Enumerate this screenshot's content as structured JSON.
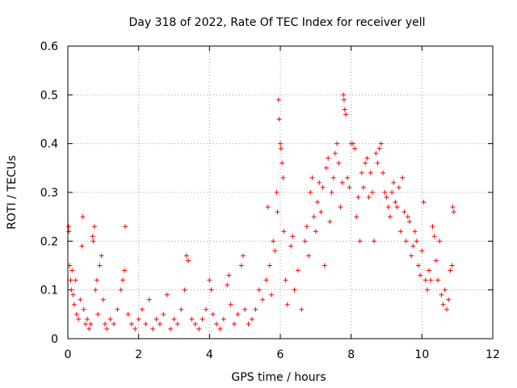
{
  "chart_data": {
    "type": "scatter",
    "title": "Day 318 of 2022, Rate Of TEC Index for receiver yell",
    "xlabel": "GPS time / hours",
    "ylabel": "ROTI / TECUs",
    "xlim": [
      0,
      12
    ],
    "ylim": [
      0,
      0.6
    ],
    "xticks": [
      "0",
      "2",
      "4",
      "6",
      "8",
      "10",
      "12"
    ],
    "yticks": [
      "0",
      "0.1",
      "0.2",
      "0.3",
      "0.4",
      "0.5",
      "0.6"
    ],
    "grid": true,
    "marker": "+",
    "marker_color": "#ff0000",
    "series": [
      {
        "name": "ROTI",
        "points": [
          [
            0.02,
            0.23
          ],
          [
            0.03,
            0.22
          ],
          [
            0.05,
            0.15
          ],
          [
            0.08,
            0.12
          ],
          [
            0.1,
            0.1
          ],
          [
            0.12,
            0.14
          ],
          [
            0.15,
            0.09
          ],
          [
            0.18,
            0.07
          ],
          [
            0.22,
            0.12
          ],
          [
            0.25,
            0.05
          ],
          [
            0.3,
            0.04
          ],
          [
            0.35,
            0.08
          ],
          [
            0.4,
            0.19
          ],
          [
            0.42,
            0.25
          ],
          [
            0.45,
            0.06
          ],
          [
            0.5,
            0.03
          ],
          [
            0.55,
            0.04
          ],
          [
            0.6,
            0.02
          ],
          [
            0.65,
            0.03
          ],
          [
            0.7,
            0.21
          ],
          [
            0.72,
            0.2
          ],
          [
            0.75,
            0.23
          ],
          [
            0.78,
            0.1
          ],
          [
            0.82,
            0.12
          ],
          [
            0.85,
            0.05
          ],
          [
            0.9,
            0.15
          ],
          [
            0.95,
            0.17
          ],
          [
            1.0,
            0.08
          ],
          [
            1.05,
            0.03
          ],
          [
            1.1,
            0.02
          ],
          [
            1.2,
            0.04
          ],
          [
            1.3,
            0.03
          ],
          [
            1.4,
            0.06
          ],
          [
            1.5,
            0.1
          ],
          [
            1.55,
            0.12
          ],
          [
            1.6,
            0.14
          ],
          [
            1.62,
            0.23
          ],
          [
            1.7,
            0.05
          ],
          [
            1.8,
            0.03
          ],
          [
            1.9,
            0.02
          ],
          [
            2.0,
            0.04
          ],
          [
            2.1,
            0.06
          ],
          [
            2.2,
            0.03
          ],
          [
            2.3,
            0.08
          ],
          [
            2.4,
            0.02
          ],
          [
            2.5,
            0.04
          ],
          [
            2.6,
            0.03
          ],
          [
            2.7,
            0.05
          ],
          [
            2.8,
            0.09
          ],
          [
            2.9,
            0.02
          ],
          [
            3.0,
            0.04
          ],
          [
            3.1,
            0.03
          ],
          [
            3.2,
            0.06
          ],
          [
            3.3,
            0.1
          ],
          [
            3.35,
            0.17
          ],
          [
            3.4,
            0.16
          ],
          [
            3.5,
            0.04
          ],
          [
            3.6,
            0.03
          ],
          [
            3.7,
            0.02
          ],
          [
            3.8,
            0.04
          ],
          [
            3.9,
            0.06
          ],
          [
            4.0,
            0.12
          ],
          [
            4.05,
            0.1
          ],
          [
            4.1,
            0.05
          ],
          [
            4.2,
            0.03
          ],
          [
            4.3,
            0.02
          ],
          [
            4.4,
            0.04
          ],
          [
            4.5,
            0.11
          ],
          [
            4.55,
            0.13
          ],
          [
            4.6,
            0.07
          ],
          [
            4.7,
            0.03
          ],
          [
            4.8,
            0.05
          ],
          [
            4.9,
            0.15
          ],
          [
            4.95,
            0.17
          ],
          [
            5.0,
            0.06
          ],
          [
            5.1,
            0.03
          ],
          [
            5.2,
            0.04
          ],
          [
            5.3,
            0.06
          ],
          [
            5.4,
            0.1
          ],
          [
            5.5,
            0.08
          ],
          [
            5.6,
            0.12
          ],
          [
            5.65,
            0.27
          ],
          [
            5.7,
            0.15
          ],
          [
            5.75,
            0.09
          ],
          [
            5.8,
            0.2
          ],
          [
            5.85,
            0.18
          ],
          [
            5.9,
            0.3
          ],
          [
            5.92,
            0.26
          ],
          [
            5.95,
            0.49
          ],
          [
            5.97,
            0.45
          ],
          [
            6.0,
            0.4
          ],
          [
            6.02,
            0.39
          ],
          [
            6.05,
            0.36
          ],
          [
            6.08,
            0.33
          ],
          [
            6.1,
            0.22
          ],
          [
            6.15,
            0.12
          ],
          [
            6.2,
            0.07
          ],
          [
            6.3,
            0.19
          ],
          [
            6.35,
            0.21
          ],
          [
            6.4,
            0.1
          ],
          [
            6.5,
            0.14
          ],
          [
            6.6,
            0.06
          ],
          [
            6.7,
            0.2
          ],
          [
            6.75,
            0.23
          ],
          [
            6.8,
            0.17
          ],
          [
            6.85,
            0.3
          ],
          [
            6.9,
            0.33
          ],
          [
            6.95,
            0.25
          ],
          [
            7.0,
            0.22
          ],
          [
            7.05,
            0.28
          ],
          [
            7.1,
            0.32
          ],
          [
            7.15,
            0.26
          ],
          [
            7.2,
            0.31
          ],
          [
            7.25,
            0.15
          ],
          [
            7.3,
            0.35
          ],
          [
            7.35,
            0.37
          ],
          [
            7.4,
            0.24
          ],
          [
            7.45,
            0.3
          ],
          [
            7.5,
            0.33
          ],
          [
            7.55,
            0.38
          ],
          [
            7.6,
            0.4
          ],
          [
            7.65,
            0.36
          ],
          [
            7.7,
            0.27
          ],
          [
            7.75,
            0.32
          ],
          [
            7.78,
            0.5
          ],
          [
            7.8,
            0.49
          ],
          [
            7.82,
            0.47
          ],
          [
            7.85,
            0.46
          ],
          [
            7.9,
            0.33
          ],
          [
            7.95,
            0.31
          ],
          [
            8.0,
            0.4
          ],
          [
            8.05,
            0.4
          ],
          [
            8.1,
            0.39
          ],
          [
            8.15,
            0.25
          ],
          [
            8.2,
            0.29
          ],
          [
            8.25,
            0.2
          ],
          [
            8.3,
            0.34
          ],
          [
            8.35,
            0.31
          ],
          [
            8.4,
            0.36
          ],
          [
            8.45,
            0.37
          ],
          [
            8.5,
            0.29
          ],
          [
            8.55,
            0.34
          ],
          [
            8.6,
            0.3
          ],
          [
            8.65,
            0.2
          ],
          [
            8.7,
            0.38
          ],
          [
            8.75,
            0.36
          ],
          [
            8.8,
            0.39
          ],
          [
            8.85,
            0.4
          ],
          [
            8.9,
            0.34
          ],
          [
            8.95,
            0.3
          ],
          [
            9.0,
            0.29
          ],
          [
            9.05,
            0.27
          ],
          [
            9.1,
            0.25
          ],
          [
            9.15,
            0.3
          ],
          [
            9.2,
            0.32
          ],
          [
            9.25,
            0.28
          ],
          [
            9.3,
            0.27
          ],
          [
            9.35,
            0.31
          ],
          [
            9.4,
            0.22
          ],
          [
            9.45,
            0.33
          ],
          [
            9.5,
            0.26
          ],
          [
            9.55,
            0.2
          ],
          [
            9.6,
            0.25
          ],
          [
            9.65,
            0.24
          ],
          [
            9.7,
            0.17
          ],
          [
            9.75,
            0.19
          ],
          [
            9.8,
            0.22
          ],
          [
            9.85,
            0.2
          ],
          [
            9.9,
            0.15
          ],
          [
            9.95,
            0.13
          ],
          [
            10.0,
            0.18
          ],
          [
            10.05,
            0.28
          ],
          [
            10.1,
            0.12
          ],
          [
            10.15,
            0.1
          ],
          [
            10.2,
            0.14
          ],
          [
            10.25,
            0.12
          ],
          [
            10.3,
            0.23
          ],
          [
            10.35,
            0.21
          ],
          [
            10.4,
            0.16
          ],
          [
            10.45,
            0.12
          ],
          [
            10.5,
            0.2
          ],
          [
            10.55,
            0.09
          ],
          [
            10.6,
            0.07
          ],
          [
            10.65,
            0.1
          ],
          [
            10.7,
            0.06
          ],
          [
            10.75,
            0.08
          ],
          [
            10.8,
            0.14
          ],
          [
            10.85,
            0.15
          ],
          [
            10.87,
            0.27
          ],
          [
            10.9,
            0.26
          ]
        ]
      }
    ]
  }
}
